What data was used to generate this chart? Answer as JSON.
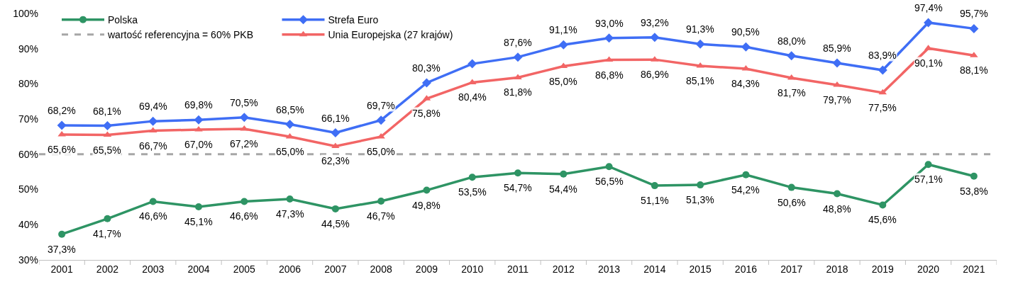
{
  "chart_data": {
    "type": "line",
    "categories": [
      "2001",
      "2002",
      "2003",
      "2004",
      "2005",
      "2006",
      "2007",
      "2008",
      "2009",
      "2010",
      "2011",
      "2012",
      "2013",
      "2014",
      "2015",
      "2016",
      "2017",
      "2018",
      "2019",
      "2020",
      "2021"
    ],
    "series": [
      {
        "name": "Polska",
        "color": "#2e9464",
        "marker": "circle",
        "values": [
          37.3,
          41.7,
          46.6,
          45.1,
          46.6,
          47.3,
          44.5,
          46.7,
          49.8,
          53.5,
          54.7,
          54.4,
          56.5,
          51.1,
          51.3,
          54.2,
          50.6,
          48.8,
          45.6,
          57.1,
          53.8
        ],
        "value_labels": [
          "37,3%",
          "41,7%",
          "46,6%",
          "45,1%",
          "46,6%",
          "47,3%",
          "44,5%",
          "46,7%",
          "49,8%",
          "53,5%",
          "54,7%",
          "54,4%",
          "56,5%",
          "51,1%",
          "51,3%",
          "54,2%",
          "50,6%",
          "48,8%",
          "45,6%",
          "57,1%",
          "53,8%"
        ]
      },
      {
        "name": "Strefa Euro",
        "color": "#3f6ef5",
        "marker": "diamond",
        "values": [
          68.2,
          68.1,
          69.4,
          69.8,
          70.5,
          68.5,
          66.1,
          69.7,
          80.3,
          85.7,
          87.6,
          91.1,
          93.0,
          93.2,
          91.3,
          90.5,
          88.0,
          85.9,
          83.9,
          97.4,
          95.7
        ],
        "value_labels": [
          "68,2%",
          "68,1%",
          "69,4%",
          "69,8%",
          "70,5%",
          "68,5%",
          "66,1%",
          "69,7%",
          "80,3%",
          null,
          "87,6%",
          "91,1%",
          "93,0%",
          "93,2%",
          "91,3%",
          "90,5%",
          "88,0%",
          "85,9%",
          "83,9%",
          "97,4%",
          "95,7%"
        ]
      },
      {
        "name": "Unia Europejska (27 krajów)",
        "color": "#f26565",
        "marker": "triangle",
        "values": [
          65.6,
          65.5,
          66.7,
          67.0,
          67.2,
          65.0,
          62.3,
          65.0,
          75.8,
          80.4,
          81.8,
          85.0,
          86.8,
          86.9,
          85.1,
          84.3,
          81.7,
          79.7,
          77.5,
          90.1,
          88.1
        ],
        "value_labels": [
          "65,6%",
          "65,5%",
          "66,7%",
          "67,0%",
          "67,2%",
          "65,0%",
          "62,3%",
          "65,0%",
          "75,8%",
          "80,4%",
          "81,8%",
          "85,0%",
          "86,8%",
          "86,9%",
          "85,1%",
          "84,3%",
          "81,7%",
          "79,7%",
          "77,5%",
          "90,1%",
          "88,1%"
        ]
      }
    ],
    "ref_lines": [
      {
        "axis": "y",
        "value": 60,
        "label": "wartość referencyjna = 60% PKB",
        "color": "#a6a6a6",
        "line_style": "dashed"
      }
    ],
    "ylim": [
      30,
      100
    ],
    "yticks": [
      {
        "value": 30,
        "label": "30%"
      },
      {
        "value": 40,
        "label": "40%"
      },
      {
        "value": 50,
        "label": "50%"
      },
      {
        "value": 60,
        "label": "60%"
      },
      {
        "value": 70,
        "label": "70%"
      },
      {
        "value": 80,
        "label": "80%"
      },
      {
        "value": 90,
        "label": "90%"
      },
      {
        "value": 100,
        "label": "100%"
      }
    ],
    "grid": false,
    "legend": "top left"
  }
}
